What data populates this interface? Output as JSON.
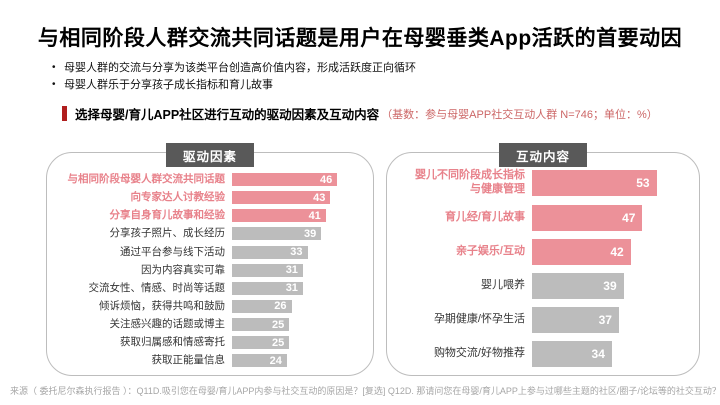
{
  "title": "与相同阶段人群交流共同话题是用户在母婴垂类App活跃的首要动因",
  "bullets": [
    "母婴人群的交流与分享为该类平台创造高价值内容，形成活跃度正向循环",
    "母婴人群乐于分享孩子成长指标和育儿故事"
  ],
  "section": {
    "heading": "选择母婴/育儿APP社区进行互动的驱动因素及互动内容",
    "note": "（基数：参与母婴APP社交互动人群 N=746；单位：%）"
  },
  "colors": {
    "accent_red": "#b01e1e",
    "note_red": "#cc6666",
    "bar_pink": "#ec9199",
    "bar_gray": "#bcbcbc",
    "highlight_label_pink": "#e8828b",
    "badge_gray": "#595959",
    "panel_border": "#bdbdbd"
  },
  "chart_data": [
    {
      "type": "bar",
      "orientation": "horizontal",
      "title": "驱动因素",
      "categories": [
        "与相同阶段母婴人群交流共同话题",
        "向专家达人讨教经验",
        "分享自身育儿故事和经验",
        "分享孩子照片、成长经历",
        "通过平台参与线下活动",
        "因为内容真实可靠",
        "交流女性、情感、时尚等话题",
        "倾诉烦恼，获得共鸣和鼓励",
        "关注感兴趣的话题或博主",
        "获取归属感和情感寄托",
        "获取正能量信息"
      ],
      "values": [
        46,
        43,
        41,
        39,
        33,
        31,
        31,
        26,
        25,
        25,
        24
      ],
      "highlight_count": 3,
      "xlim": [
        0,
        52
      ],
      "unit": "%",
      "value_labels": "inside-right",
      "grid": false,
      "legend": "none"
    },
    {
      "type": "bar",
      "orientation": "horizontal",
      "title": "互动内容",
      "categories": [
        "婴儿不同阶段成长指标\n与健康管理",
        "育儿经/育儿故事",
        "亲子娱乐/互动",
        "婴儿喂养",
        "孕期健康/怀孕生活",
        "购物交流/好物推荐"
      ],
      "values": [
        53,
        47,
        42,
        39,
        37,
        34
      ],
      "highlight_count": 3,
      "xlim": [
        0,
        60
      ],
      "unit": "%",
      "value_labels": "inside-right",
      "grid": false,
      "legend": "none"
    }
  ],
  "source": "来源（ 委托尼尔森执行报告 ）：Q11D.吸引您在母婴/育儿APP内参与社交互动的原因是？[复选] Q12D. 那请问您在母婴/育儿APP上参与过哪些主题的社区/圈子/论坛等的社交互动？[复选]"
}
